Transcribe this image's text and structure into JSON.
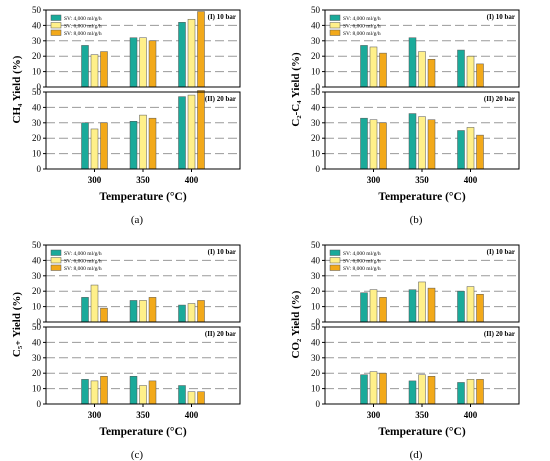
{
  "series_labels": [
    "SV: 4,000 ml/g/h",
    "SV: 6,000 ml/g/h",
    "SV: 8,000 ml/g/h"
  ],
  "colors": [
    "#1aaa9a",
    "#fff08a",
    "#f2a91a"
  ],
  "chart_data": [
    {
      "type": "bar",
      "caption": "(a)",
      "ylabel": "CH₄ Yield (%)",
      "xlabel": "Temperature (°C)",
      "categories": [
        "300",
        "350",
        "400"
      ],
      "ylim": [
        0,
        50
      ],
      "yticks": [
        0,
        10,
        20,
        30,
        40,
        50
      ],
      "panels": [
        {
          "label": "(I) 10 bar",
          "series": [
            {
              "name": "SV: 4,000 ml/g/h",
              "values": [
                27,
                32,
                42
              ]
            },
            {
              "name": "SV: 6,000 ml/g/h",
              "values": [
                21,
                32,
                44
              ]
            },
            {
              "name": "SV: 8,000 ml/g/h",
              "values": [
                23,
                30,
                49
              ]
            }
          ]
        },
        {
          "label": "(II) 20 bar",
          "series": [
            {
              "name": "SV: 4,000 ml/g/h",
              "values": [
                30,
                31,
                47
              ]
            },
            {
              "name": "SV: 6,000 ml/g/h",
              "values": [
                26,
                35,
                48
              ]
            },
            {
              "name": "SV: 8,000 ml/g/h",
              "values": [
                30,
                33,
                51
              ]
            }
          ]
        }
      ]
    },
    {
      "type": "bar",
      "caption": "(b)",
      "ylabel": "C₂-C₄ Yield (%)",
      "xlabel": "Temperature (°C)",
      "categories": [
        "300",
        "350",
        "400"
      ],
      "ylim": [
        0,
        50
      ],
      "yticks": [
        0,
        10,
        20,
        30,
        40,
        50
      ],
      "panels": [
        {
          "label": "(I) 10 bar",
          "series": [
            {
              "name": "SV: 4,000 ml/g/h",
              "values": [
                27,
                32,
                24
              ]
            },
            {
              "name": "SV: 6,000 ml/g/h",
              "values": [
                26,
                23,
                20
              ]
            },
            {
              "name": "SV: 8,000 ml/g/h",
              "values": [
                22,
                18,
                15
              ]
            }
          ]
        },
        {
          "label": "(II) 20 bar",
          "series": [
            {
              "name": "SV: 4,000 ml/g/h",
              "values": [
                33,
                36,
                25
              ]
            },
            {
              "name": "SV: 6,000 ml/g/h",
              "values": [
                32,
                34,
                27
              ]
            },
            {
              "name": "SV: 8,000 ml/g/h",
              "values": [
                30,
                32,
                22
              ]
            }
          ]
        }
      ]
    },
    {
      "type": "bar",
      "caption": "(c)",
      "ylabel": "C₅₊ Yield (%)",
      "xlabel": "Temperature (°C)",
      "categories": [
        "300",
        "350",
        "400"
      ],
      "ylim": [
        0,
        50
      ],
      "yticks": [
        0,
        10,
        20,
        30,
        40,
        50
      ],
      "panels": [
        {
          "label": "(I) 10 bar",
          "series": [
            {
              "name": "SV: 4,000 ml/g/h",
              "values": [
                16,
                14,
                11
              ]
            },
            {
              "name": "SV: 6,000 ml/g/h",
              "values": [
                24,
                14,
                12
              ]
            },
            {
              "name": "SV: 8,000 ml/g/h",
              "values": [
                9,
                16,
                14
              ]
            }
          ]
        },
        {
          "label": "(II) 20 bar",
          "series": [
            {
              "name": "SV: 4,000 ml/g/h",
              "values": [
                16,
                18,
                12
              ]
            },
            {
              "name": "SV: 6,000 ml/g/h",
              "values": [
                15,
                12,
                8
              ]
            },
            {
              "name": "SV: 8,000 ml/g/h",
              "values": [
                18,
                15,
                8
              ]
            }
          ]
        }
      ]
    },
    {
      "type": "bar",
      "caption": "(d)",
      "ylabel": "CO₂ Yield (%)",
      "xlabel": "Temperature (°C)",
      "categories": [
        "300",
        "350",
        "400"
      ],
      "ylim": [
        0,
        50
      ],
      "yticks": [
        0,
        10,
        20,
        30,
        40,
        50
      ],
      "panels": [
        {
          "label": "(I) 10 bar",
          "series": [
            {
              "name": "SV: 4,000 ml/g/h",
              "values": [
                19,
                21,
                20
              ]
            },
            {
              "name": "SV: 6,000 ml/g/h",
              "values": [
                21,
                26,
                23
              ]
            },
            {
              "name": "SV: 8,000 ml/g/h",
              "values": [
                16,
                22,
                18
              ]
            }
          ]
        },
        {
          "label": "(II) 20 bar",
          "series": [
            {
              "name": "SV: 4,000 ml/g/h",
              "values": [
                19,
                15,
                14
              ]
            },
            {
              "name": "SV: 6,000 ml/g/h",
              "values": [
                21,
                19,
                16
              ]
            },
            {
              "name": "SV: 8,000 ml/g/h",
              "values": [
                20,
                18,
                16
              ]
            }
          ]
        }
      ]
    }
  ]
}
